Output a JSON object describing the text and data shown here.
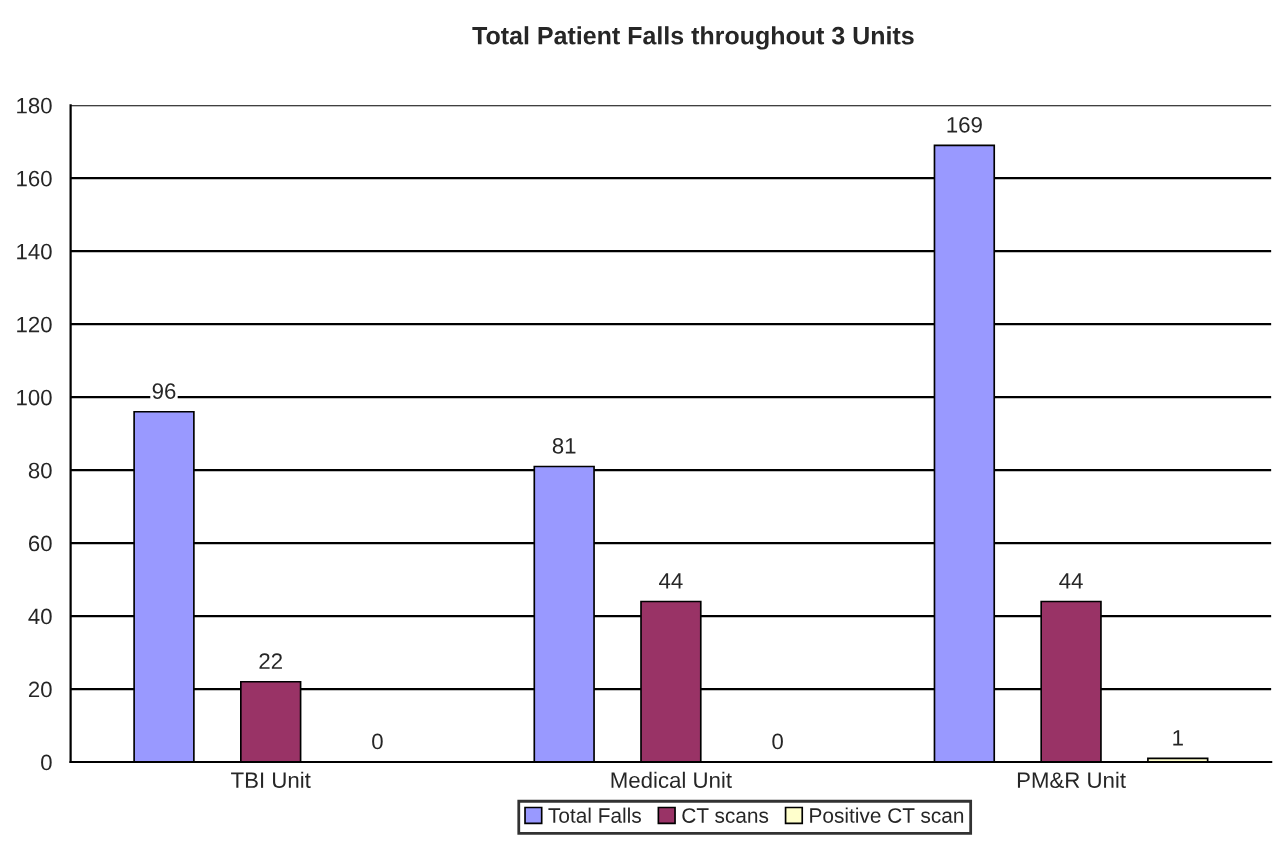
{
  "chart_data": {
    "type": "bar",
    "title": "Total Patient Falls throughout 3 Units",
    "categories": [
      "TBI Unit",
      "Medical Unit",
      "PM&R Unit"
    ],
    "series": [
      {
        "name": "Total Falls",
        "color": "#9999ff",
        "values": [
          96,
          81,
          169
        ]
      },
      {
        "name": "CT scans",
        "color": "#993366",
        "values": [
          22,
          44,
          44
        ]
      },
      {
        "name": "Positive CT scan",
        "color": "#ffffcc",
        "values": [
          0,
          0,
          1
        ]
      }
    ],
    "ylim": [
      0,
      180
    ],
    "yticks": [
      0,
      20,
      40,
      60,
      80,
      100,
      120,
      140,
      160,
      180
    ],
    "grid": "y",
    "legend": "bottom",
    "data_labels": true
  }
}
